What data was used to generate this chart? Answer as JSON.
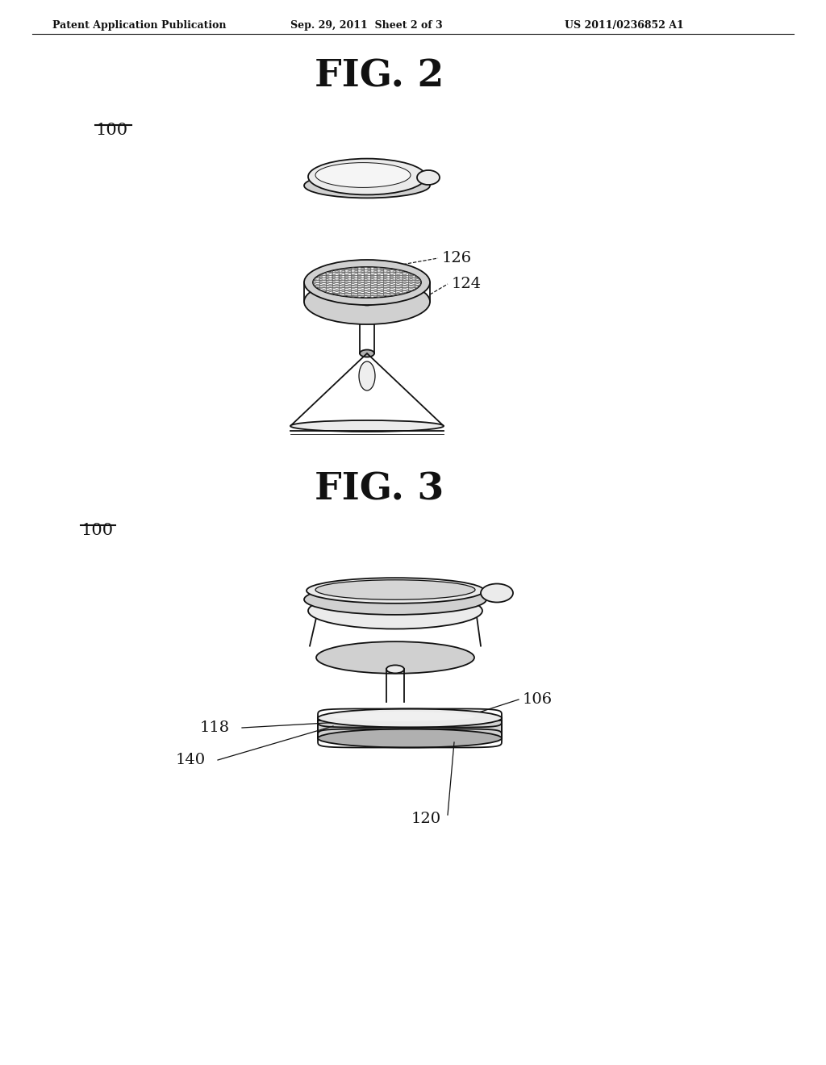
{
  "bg_color": "#ffffff",
  "header_left": "Patent Application Publication",
  "header_mid": "Sep. 29, 2011  Sheet 2 of 3",
  "header_right": "US 2011/0236852 A1",
  "fig2_title": "FIG. 2",
  "fig3_title": "FIG. 3",
  "label_100_fig2": "100",
  "label_100_fig3": "100",
  "label_126": "126",
  "label_124": "124",
  "label_106": "106",
  "label_118": "118",
  "label_120": "120",
  "label_140": "140",
  "line_color": "#111111",
  "fill_light": "#ebebeb",
  "fill_mid": "#d0d0d0",
  "fill_dark": "#b0b0b0",
  "mesh_line_color": "#555555"
}
